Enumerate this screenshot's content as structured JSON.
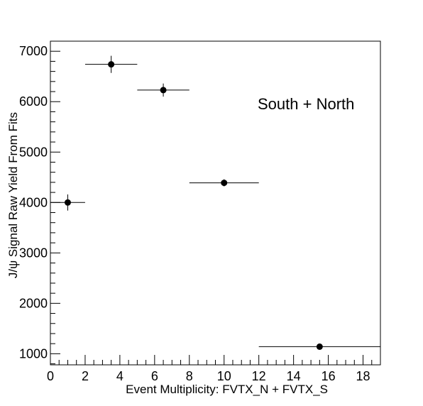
{
  "chart_data": {
    "type": "scatter",
    "xlabel": "Event Multiplicity: FVTX_N + FVTX_S",
    "ylabel": "J/ψ Signal Raw Yield From Fits",
    "annotation": "South + North",
    "xlim": [
      0,
      19
    ],
    "ylim": [
      780,
      7200
    ],
    "x_ticks": [
      0,
      2,
      4,
      6,
      8,
      10,
      12,
      14,
      16,
      18
    ],
    "y_ticks": [
      1000,
      2000,
      3000,
      4000,
      5000,
      6000,
      7000
    ],
    "grid": false,
    "marker_color": "#000000",
    "points": [
      {
        "x": 1.0,
        "x_low": 0,
        "x_high": 2,
        "y": 4000,
        "y_err": 160
      },
      {
        "x": 3.5,
        "x_low": 2,
        "x_high": 5,
        "y": 6740,
        "y_err": 170
      },
      {
        "x": 6.5,
        "x_low": 5,
        "x_high": 8,
        "y": 6230,
        "y_err": 130
      },
      {
        "x": 10.0,
        "x_low": 8,
        "x_high": 12,
        "y": 4390,
        "y_err": 70
      },
      {
        "x": 15.5,
        "x_low": 12,
        "x_high": 19,
        "y": 1140,
        "y_err": 60
      }
    ]
  }
}
